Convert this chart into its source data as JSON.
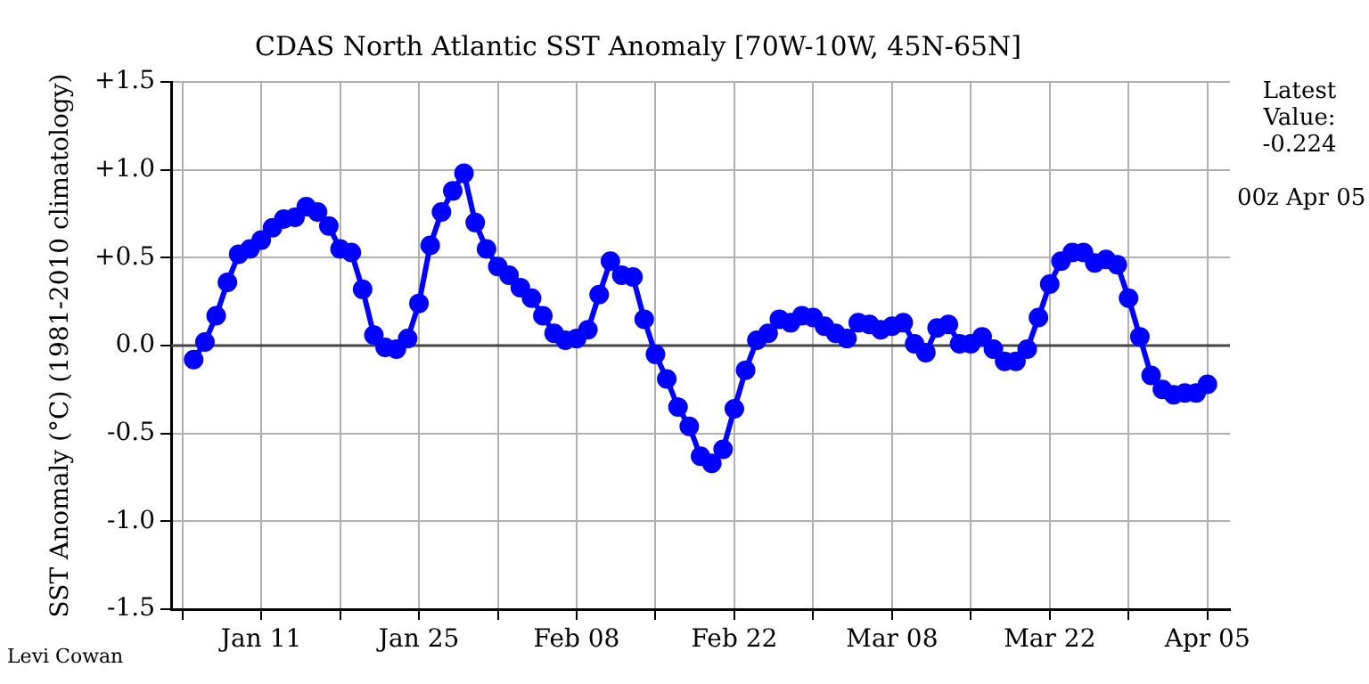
{
  "chart_data": {
    "type": "line",
    "title": "CDAS North Atlantic SST Anomaly [70W-10W, 45N-65N]",
    "ylabel": "SST Anomaly (°C) (1981-2010 climatology)",
    "xlim": [
      "--01-03",
      "--04-07"
    ],
    "xticks": [
      {
        "value": "--01-04",
        "label": null
      },
      {
        "value": "--01-11",
        "label": "Jan 11"
      },
      {
        "value": "--01-18",
        "label": null
      },
      {
        "value": "--01-25",
        "label": "Jan 25"
      },
      {
        "value": "--02-01",
        "label": null
      },
      {
        "value": "--02-08",
        "label": "Feb 08"
      },
      {
        "value": "--02-15",
        "label": null
      },
      {
        "value": "--02-22",
        "label": "Feb 22"
      },
      {
        "value": "--03-01",
        "label": null
      },
      {
        "value": "--03-08",
        "label": "Mar 08"
      },
      {
        "value": "--03-15",
        "label": null
      },
      {
        "value": "--03-22",
        "label": "Mar 22"
      },
      {
        "value": "--03-29",
        "label": null
      },
      {
        "value": "--04-05",
        "label": "Apr 05"
      }
    ],
    "ylim": [
      -1.5,
      1.5
    ],
    "yticks": [
      {
        "value": -1.5,
        "label": "-1.5"
      },
      {
        "value": -1.0,
        "label": "-1.0"
      },
      {
        "value": -0.5,
        "label": "-0.5"
      },
      {
        "value": 0,
        "label": "0.0"
      },
      {
        "value": 0.5,
        "label": "+0.5"
      },
      {
        "value": 1.0,
        "label": "+1.0"
      },
      {
        "value": 1.5,
        "label": "+1.5"
      }
    ],
    "grid": true,
    "legend": false,
    "ref_lines": [
      {
        "axis": "y",
        "value": 0,
        "color": "#444444"
      }
    ],
    "annotations": [
      "Latest Value: -0.224",
      "00z Apr 05",
      "Levi Cowan"
    ],
    "series": [
      {
        "type": "line",
        "color": "#0000ff",
        "marker": "circle",
        "x": [
          "--01-05",
          "--01-06",
          "--01-07",
          "--01-08",
          "--01-09",
          "--01-10",
          "--01-11",
          "--01-12",
          "--01-13",
          "--01-14",
          "--01-15",
          "--01-16",
          "--01-17",
          "--01-18",
          "--01-19",
          "--01-20",
          "--01-21",
          "--01-22",
          "--01-23",
          "--01-24",
          "--01-25",
          "--01-26",
          "--01-27",
          "--01-28",
          "--01-29",
          "--01-30",
          "--01-31",
          "--02-01",
          "--02-02",
          "--02-03",
          "--02-04",
          "--02-05",
          "--02-06",
          "--02-07",
          "--02-08",
          "--02-09",
          "--02-10",
          "--02-11",
          "--02-12",
          "--02-13",
          "--02-14",
          "--02-15",
          "--02-16",
          "--02-17",
          "--02-18",
          "--02-19",
          "--02-20",
          "--02-21",
          "--02-22",
          "--02-23",
          "--02-24",
          "--02-25",
          "--02-26",
          "--02-27",
          "--02-28",
          "--03-01",
          "--03-02",
          "--03-03",
          "--03-04",
          "--03-05",
          "--03-06",
          "--03-07",
          "--03-08",
          "--03-09",
          "--03-10",
          "--03-11",
          "--03-12",
          "--03-13",
          "--03-14",
          "--03-15",
          "--03-16",
          "--03-17",
          "--03-18",
          "--03-19",
          "--03-20",
          "--03-21",
          "--03-22",
          "--03-23",
          "--03-24",
          "--03-25",
          "--03-26",
          "--03-27",
          "--03-28",
          "--03-29",
          "--03-30",
          "--03-31",
          "--04-01",
          "--04-02",
          "--04-03",
          "--04-04",
          "--04-05"
        ],
        "values": [
          -0.08,
          0.02,
          0.17,
          0.36,
          0.52,
          0.55,
          0.6,
          0.67,
          0.72,
          0.73,
          0.79,
          0.76,
          0.68,
          0.55,
          0.53,
          0.32,
          0.06,
          -0.01,
          -0.02,
          0.04,
          0.24,
          0.57,
          0.76,
          0.88,
          0.98,
          0.7,
          0.55,
          0.45,
          0.4,
          0.33,
          0.27,
          0.17,
          0.07,
          0.03,
          0.04,
          0.09,
          0.29,
          0.48,
          0.4,
          0.39,
          0.15,
          -0.05,
          -0.19,
          -0.35,
          -0.46,
          -0.63,
          -0.67,
          -0.59,
          -0.36,
          -0.14,
          0.03,
          0.07,
          0.15,
          0.13,
          0.17,
          0.16,
          0.11,
          0.07,
          0.04,
          0.13,
          0.12,
          0.09,
          0.11,
          0.13,
          0.01,
          -0.04,
          0.1,
          0.12,
          0.01,
          0.01,
          0.05,
          -0.02,
          -0.09,
          -0.09,
          -0.02,
          0.16,
          0.35,
          0.48,
          0.53,
          0.53,
          0.47,
          0.49,
          0.46,
          0.27,
          0.05,
          -0.17,
          -0.25,
          -0.28,
          -0.27,
          -0.27,
          -0.22
        ]
      }
    ]
  }
}
